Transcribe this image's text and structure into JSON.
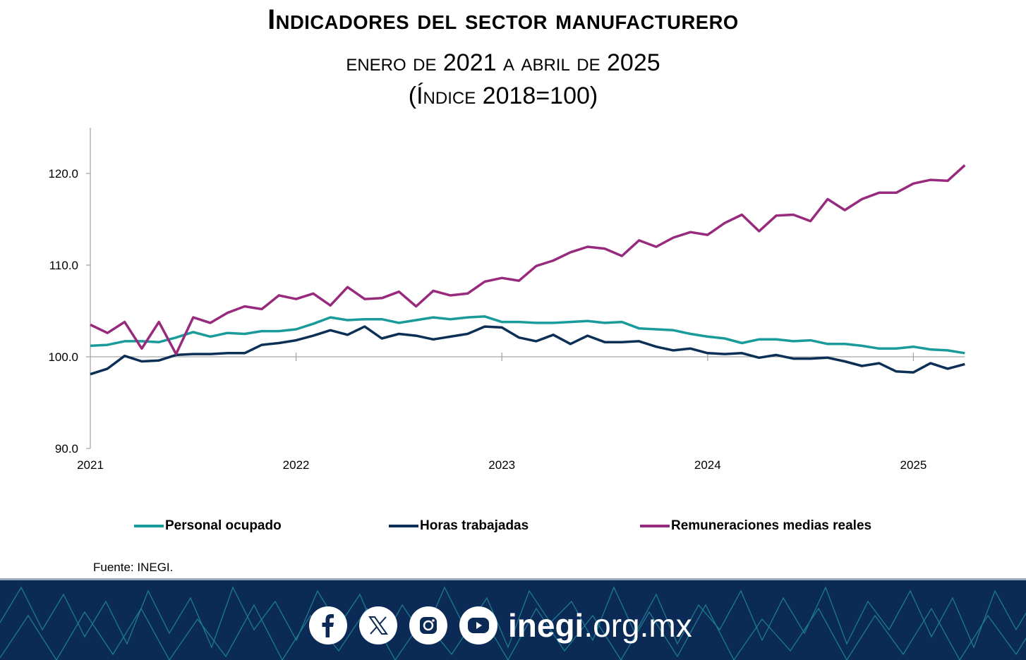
{
  "header": {
    "title": "Indicadores del sector manufacturero",
    "subtitle_line1": "enero de 2021 a abril de 2025",
    "subtitle_line2": "(Índice 2018=100)"
  },
  "legend": [
    {
      "label": "Personal ocupado",
      "color": "#1a9b9b"
    },
    {
      "label": "Horas trabajadas",
      "color": "#0c2f55"
    },
    {
      "label": "Remuneraciones medias reales",
      "color": "#972a7d"
    }
  ],
  "source": "Fuente: INEGI.",
  "footer": {
    "social": [
      "facebook-icon",
      "x-icon",
      "instagram-icon",
      "youtube-icon"
    ],
    "site_bold": "inegi",
    "site_rest": ".org.mx"
  },
  "chart_data": {
    "type": "line",
    "title": "Indicadores del sector manufacturero",
    "subtitle": "enero de 2021 a abril de 2025 (Índice 2018=100)",
    "xlabel": "",
    "ylabel": "",
    "ylim": [
      90,
      125
    ],
    "yticks": [
      90,
      100,
      110,
      120
    ],
    "ytick_labels": [
      "90.0",
      "100.0",
      "110.0",
      "120.0"
    ],
    "xtick_labels": [
      "2021",
      "2022",
      "2023",
      "2024",
      "2025"
    ],
    "x_axis_crosses_at": 100,
    "grid": false,
    "legend_position": "bottom",
    "x": [
      "2021-01",
      "2021-02",
      "2021-03",
      "2021-04",
      "2021-05",
      "2021-06",
      "2021-07",
      "2021-08",
      "2021-09",
      "2021-10",
      "2021-11",
      "2021-12",
      "2022-01",
      "2022-02",
      "2022-03",
      "2022-04",
      "2022-05",
      "2022-06",
      "2022-07",
      "2022-08",
      "2022-09",
      "2022-10",
      "2022-11",
      "2022-12",
      "2023-01",
      "2023-02",
      "2023-03",
      "2023-04",
      "2023-05",
      "2023-06",
      "2023-07",
      "2023-08",
      "2023-09",
      "2023-10",
      "2023-11",
      "2023-12",
      "2024-01",
      "2024-02",
      "2024-03",
      "2024-04",
      "2024-05",
      "2024-06",
      "2024-07",
      "2024-08",
      "2024-09",
      "2024-10",
      "2024-11",
      "2024-12",
      "2025-01",
      "2025-02",
      "2025-03",
      "2025-04"
    ],
    "series": [
      {
        "name": "Personal ocupado",
        "color": "#1a9b9b",
        "values": [
          101.2,
          101.3,
          101.7,
          101.7,
          101.6,
          102.1,
          102.7,
          102.2,
          102.6,
          102.5,
          102.8,
          102.8,
          103.0,
          103.6,
          104.3,
          104.0,
          104.1,
          104.1,
          103.7,
          104.0,
          104.3,
          104.1,
          104.3,
          104.4,
          103.8,
          103.8,
          103.7,
          103.7,
          103.8,
          103.9,
          103.7,
          103.8,
          103.1,
          103.0,
          102.9,
          102.5,
          102.2,
          102.0,
          101.5,
          101.9,
          101.9,
          101.7,
          101.8,
          101.4,
          101.4,
          101.2,
          100.9,
          100.9,
          101.1,
          100.8,
          100.7,
          100.4
        ]
      },
      {
        "name": "Horas trabajadas",
        "color": "#0c2f55",
        "values": [
          98.1,
          98.7,
          100.1,
          99.5,
          99.6,
          100.2,
          100.3,
          100.3,
          100.4,
          100.4,
          101.3,
          101.5,
          101.8,
          102.3,
          102.9,
          102.4,
          103.3,
          102.0,
          102.5,
          102.3,
          101.9,
          102.2,
          102.5,
          103.3,
          103.2,
          102.1,
          101.7,
          102.4,
          101.4,
          102.3,
          101.6,
          101.6,
          101.7,
          101.1,
          100.7,
          100.9,
          100.4,
          100.3,
          100.4,
          99.9,
          100.2,
          99.8,
          99.8,
          99.9,
          99.5,
          99.0,
          99.3,
          98.4,
          98.3,
          99.3,
          98.7,
          99.2
        ]
      },
      {
        "name": "Remuneraciones medias reales",
        "color": "#972a7d",
        "values": [
          103.5,
          102.6,
          103.8,
          100.9,
          103.8,
          100.3,
          104.3,
          103.7,
          104.8,
          105.5,
          105.2,
          106.7,
          106.3,
          106.9,
          105.6,
          107.6,
          106.3,
          106.4,
          107.1,
          105.5,
          107.2,
          106.7,
          106.9,
          108.2,
          108.6,
          108.3,
          109.9,
          110.5,
          111.4,
          112.0,
          111.8,
          111.0,
          112.7,
          112.0,
          113.0,
          113.6,
          113.3,
          114.6,
          115.5,
          113.7,
          115.4,
          115.5,
          114.8,
          117.2,
          116.0,
          117.2,
          117.9,
          117.9,
          118.9,
          119.3,
          119.2,
          120.9
        ]
      }
    ]
  }
}
